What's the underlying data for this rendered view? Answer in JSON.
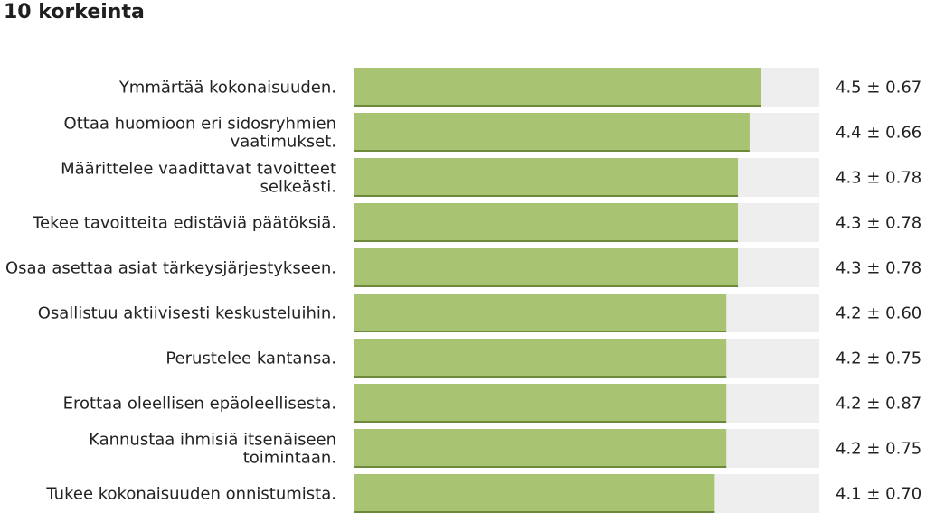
{
  "chart_data": {
    "type": "bar",
    "orientation": "horizontal",
    "title": "10 korkeinta",
    "categories": [
      [
        "Ymmärtää kokonaisuuden."
      ],
      [
        "Ottaa huomioon eri sidosryhmien",
        "vaatimukset."
      ],
      [
        "Määrittelee vaadittavat tavoitteet",
        "selkeästi."
      ],
      [
        "Tekee tavoitteita edistäviä päätöksiä."
      ],
      [
        "Osaa asettaa asiat tärkeysjärjestykseen."
      ],
      [
        "Osallistuu aktiivisesti keskusteluihin."
      ],
      [
        "Perustelee kantansa."
      ],
      [
        "Erottaa oleellisen epäoleellisesta."
      ],
      [
        "Kannustaa ihmisiä itsenäiseen",
        "toimintaan."
      ],
      [
        "Tukee kokonaisuuden onnistumista."
      ]
    ],
    "values": [
      4.5,
      4.4,
      4.3,
      4.3,
      4.3,
      4.2,
      4.2,
      4.2,
      4.2,
      4.1
    ],
    "value_labels": [
      "4.5 ± 0.67",
      "4.4 ± 0.66",
      "4.3 ± 0.78",
      "4.3 ± 0.78",
      "4.3 ± 0.78",
      "4.2 ± 0.60",
      "4.2 ± 0.75",
      "4.2 ± 0.87",
      "4.2 ± 0.75",
      "4.1 ± 0.70"
    ],
    "xlim": [
      1,
      5
    ],
    "grid": false,
    "legend": "none",
    "colors": {
      "bar": "#a8c472",
      "bar_shadow": "#6d8a3c",
      "track": "#eeeeee"
    }
  }
}
